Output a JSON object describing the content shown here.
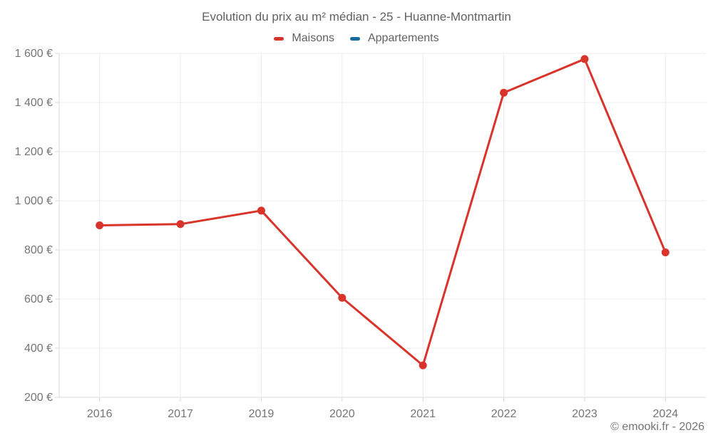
{
  "chart_data": {
    "type": "line",
    "title": "Evolution du prix au m² médian - 25 - Huanne-Montmartin",
    "categories": [
      "2016",
      "2017",
      "2019",
      "2020",
      "2021",
      "2022",
      "2023",
      "2024"
    ],
    "series": [
      {
        "name": "Maisons",
        "color": "#d8342c",
        "values": [
          900,
          905,
          960,
          605,
          330,
          1440,
          1577,
          790
        ]
      },
      {
        "name": "Appartements",
        "color": "#17699e",
        "values": []
      }
    ],
    "xlabel": "",
    "ylabel": "",
    "ylim": [
      200,
      1600
    ],
    "ytick_step": 200,
    "yticks": [
      "200 €",
      "400 €",
      "600 €",
      "800 €",
      "1 000 €",
      "1 200 €",
      "1 400 €",
      "1 600 €"
    ],
    "legend_position": "top",
    "grid": true,
    "grid_color": "#ececec",
    "axis_color": "#d9d9d9",
    "tick_text_color": "#757575",
    "title_color": "#616161"
  },
  "footer": {
    "copyright": "© emooki.fr - 2026"
  }
}
